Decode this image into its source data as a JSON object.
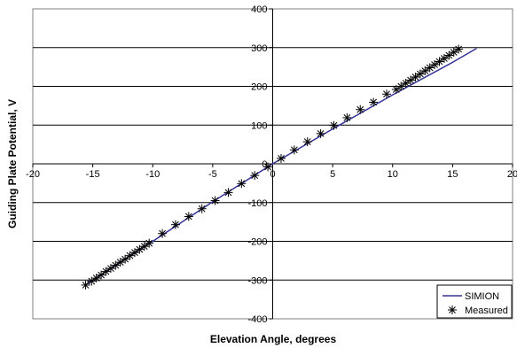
{
  "chart_data": {
    "type": "line",
    "title": "",
    "xlabel": "Elevation Angle, degrees",
    "ylabel": "Guiding Plate Potential, V",
    "xlim": [
      -20,
      20
    ],
    "ylim": [
      -400,
      400
    ],
    "x_ticks": [
      -20,
      -15,
      -10,
      -5,
      0,
      5,
      10,
      15,
      20
    ],
    "y_ticks": [
      -400,
      -300,
      -200,
      -100,
      0,
      100,
      200,
      300,
      400
    ],
    "x_tick_labels": [
      "-20",
      "-15",
      "-10",
      "-5",
      "0",
      "5",
      "10",
      "15",
      "20"
    ],
    "y_tick_labels": [
      "-400",
      "-300",
      "-200",
      "-100",
      "0",
      "100",
      "200",
      "300",
      "400"
    ],
    "grid": "horizontal",
    "legend_position": "bottom-right",
    "series": [
      {
        "name": "SIMION",
        "kind": "line",
        "color": "#333399",
        "x": [
          -15.5,
          -10,
          -5,
          0,
          5,
          10,
          15,
          17
        ],
        "y": [
          -310,
          -200,
          -98,
          0,
          90,
          178,
          262,
          298
        ]
      },
      {
        "name": "Measured",
        "kind": "scatter",
        "marker": "asterisk",
        "color": "#000000",
        "x": [
          -15.6,
          -15.1,
          -14.7,
          -14.3,
          -13.9,
          -13.5,
          -13.1,
          -12.7,
          -12.3,
          -11.9,
          -11.5,
          -11.1,
          -10.7,
          -10.3,
          -9.2,
          -8.1,
          -7.0,
          -5.9,
          -4.8,
          -3.7,
          -2.6,
          -1.5,
          -0.4,
          0.7,
          1.8,
          2.9,
          4.0,
          5.1,
          6.2,
          7.3,
          8.4,
          9.5,
          10.3,
          10.7,
          11.1,
          11.5,
          11.9,
          12.3,
          12.7,
          13.1,
          13.5,
          13.9,
          14.3,
          14.7,
          15.1,
          15.5
        ],
        "y": [
          -313,
          -303,
          -295,
          -287,
          -278,
          -270,
          -262,
          -254,
          -246,
          -237,
          -229,
          -221,
          -213,
          -205,
          -180,
          -157,
          -136,
          -116,
          -95,
          -74,
          -51,
          -30,
          -8,
          14,
          36,
          57,
          78,
          99,
          119,
          140,
          159,
          180,
          192,
          200,
          208,
          216,
          224,
          232,
          240,
          248,
          256,
          264,
          272,
          280,
          288,
          296
        ]
      }
    ]
  }
}
